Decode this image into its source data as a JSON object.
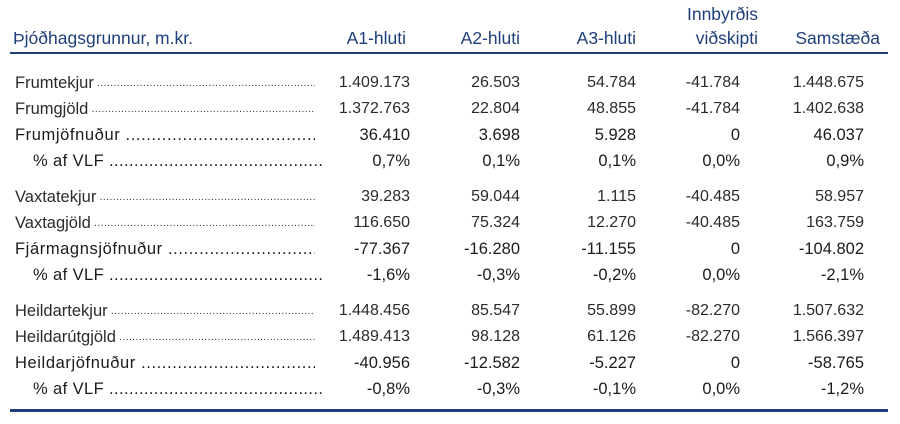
{
  "headers": {
    "label": "Þjóðhagsgrunnur, m.kr.",
    "cols": [
      "A1-hluti",
      "A2-hluti",
      "A3-hluti",
      "Innbyrðis",
      "viðskipti",
      "Samstæða"
    ]
  },
  "rows": [
    {
      "label": "Frumtekjur",
      "values": [
        "1.409.173",
        "26.503",
        "54.784",
        "-41.784",
        "1.448.675"
      ]
    },
    {
      "label": "Frumgjöld",
      "values": [
        "1.372.763",
        "22.804",
        "48.855",
        "-41.784",
        "1.402.638"
      ]
    },
    {
      "label": "Frumjöfnuður",
      "values": [
        "36.410",
        "3.698",
        "5.928",
        "0",
        "46.037"
      ]
    },
    {
      "label": "% af VLF",
      "values": [
        "0,7%",
        "0,1%",
        "0,1%",
        "0,0%",
        "0,9%"
      ]
    },
    {
      "label": "Vaxtatekjur",
      "values": [
        "39.283",
        "59.044",
        "1.115",
        "-40.485",
        "58.957"
      ]
    },
    {
      "label": "Vaxtagjöld",
      "values": [
        "116.650",
        "75.324",
        "12.270",
        "-40.485",
        "163.759"
      ]
    },
    {
      "label": "Fjármagnsjöfnuður",
      "values": [
        "-77.367",
        "-16.280",
        "-11.155",
        "0",
        "-104.802"
      ]
    },
    {
      "label": "% af VLF",
      "values": [
        "-1,6%",
        "-0,3%",
        "-0,2%",
        "0,0%",
        "-2,1%"
      ]
    },
    {
      "label": "Heildartekjur",
      "values": [
        "1.448.456",
        "85.547",
        "55.899",
        "-82.270",
        "1.507.632"
      ]
    },
    {
      "label": "Heildarútgjöld",
      "values": [
        "1.489.413",
        "98.128",
        "61.126",
        "-82.270",
        "1.566.397"
      ]
    },
    {
      "label": "Heildarjöfnuður",
      "values": [
        "-40.956",
        "-12.582",
        "-5.227",
        "0",
        "-58.765"
      ]
    },
    {
      "label": "% af VLF",
      "values": [
        "-0,8%",
        "-0,3%",
        "-0,1%",
        "0,0%",
        "-1,2%"
      ]
    }
  ],
  "colors": {
    "header": "#1f3f7a",
    "rule": "#1f3f7a",
    "text": "#1b1b1b"
  }
}
